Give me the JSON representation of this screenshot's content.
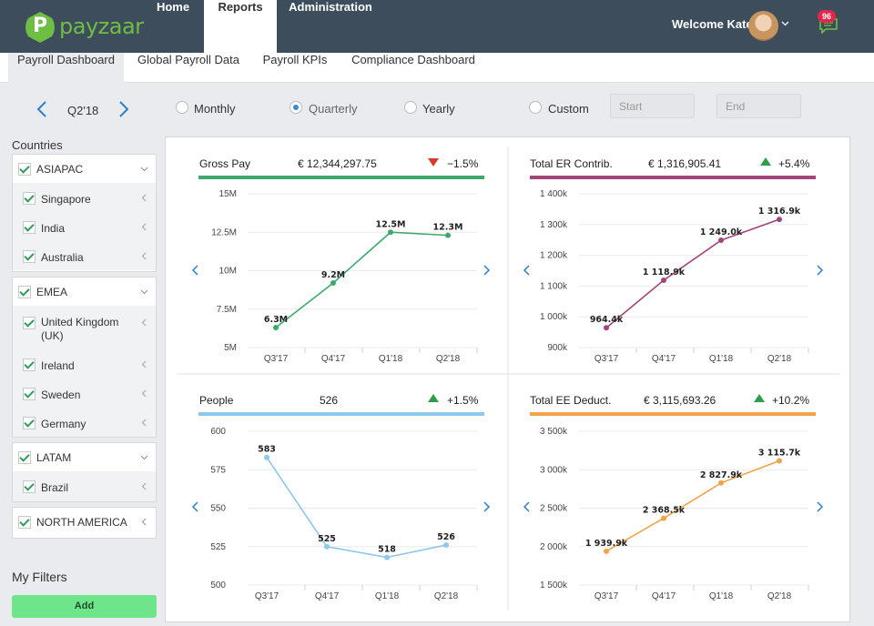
{
  "app": {
    "logo_text": "payzaar",
    "logo_mark": "P"
  },
  "nav": [
    {
      "label": "Home"
    },
    {
      "label": "Reports"
    },
    {
      "label": "Administration"
    }
  ],
  "user": {
    "welcome": "Welcome Kate",
    "notifications": "96"
  },
  "subtabs": [
    {
      "label": "Payroll Dashboard"
    },
    {
      "label": "Global Payroll Data"
    },
    {
      "label": "Payroll KPIs"
    },
    {
      "label": "Compliance Dashboard"
    }
  ],
  "period": {
    "label": "Q2'18",
    "options": [
      {
        "label": "Monthly",
        "checked": false
      },
      {
        "label": "Quarterly",
        "checked": true
      },
      {
        "label": "Yearly",
        "checked": false
      },
      {
        "label": "Custom",
        "checked": false
      }
    ],
    "start_placeholder": "Start",
    "end_placeholder": "End"
  },
  "sidebar": {
    "title": "Countries",
    "groups": [
      {
        "name": "ASIAPAC",
        "items": [
          "Singapore",
          "India",
          "Australia"
        ]
      },
      {
        "name": "EMEA",
        "items": [
          "United Kingdom (UK)",
          "Ireland",
          "Sweden",
          "Germany"
        ]
      },
      {
        "name": "LATAM",
        "items": [
          "Brazil"
        ]
      },
      {
        "name": "NORTH AMERICA",
        "items": []
      }
    ],
    "my_filters": "My Filters",
    "add_label": "Add"
  },
  "colors": {
    "nav_bg": "#3e4d5c",
    "brand_green": "#6fbe44",
    "gross": "#3daa6b",
    "er": "#a2457b",
    "people": "#8fc8ea",
    "ee": "#f0a34a",
    "up": "#2e9e4a",
    "down": "#d43b2a"
  },
  "chart_data": [
    {
      "type": "line",
      "title": "Gross Pay",
      "kpi_value": "€ 12,344,297.75",
      "kpi_change": "−1.5%",
      "trend": "down",
      "color": "#3daa6b",
      "categories": [
        "Q3'17",
        "Q4'17",
        "Q1'18",
        "Q2'18"
      ],
      "values": [
        6.3,
        9.2,
        12.5,
        12.3
      ],
      "value_labels": [
        "6.3M",
        "9.2M",
        "12.5M",
        "12.3M"
      ],
      "yticks": [
        5,
        7.5,
        10,
        12.5,
        15
      ],
      "ytick_labels": [
        "5M",
        "7.5M",
        "10M",
        "12.5M",
        "15M"
      ],
      "ylim": [
        5,
        15
      ]
    },
    {
      "type": "line",
      "title": "Total ER Contrib.",
      "kpi_value": "€ 1,316,905.41",
      "kpi_change": "+5.4%",
      "trend": "up",
      "color": "#a2457b",
      "categories": [
        "Q3'17",
        "Q4'17",
        "Q1'18",
        "Q2'18"
      ],
      "values": [
        964.4,
        1118.9,
        1249.0,
        1316.9
      ],
      "value_labels": [
        "964.4k",
        "1 118.9k",
        "1 249.0k",
        "1 316.9k"
      ],
      "yticks": [
        900,
        1000,
        1100,
        1200,
        1300,
        1400
      ],
      "ytick_labels": [
        "900k",
        "1 000k",
        "1 100k",
        "1 200k",
        "1 300k",
        "1 400k"
      ],
      "ylim": [
        900,
        1400
      ]
    },
    {
      "type": "line",
      "title": "People",
      "kpi_value": "526",
      "kpi_change": "+1.5%",
      "trend": "up",
      "color": "#8fc8ea",
      "categories": [
        "Q3'17",
        "Q4'17",
        "Q1'18",
        "Q2'18"
      ],
      "values": [
        583,
        525,
        518,
        526
      ],
      "value_labels": [
        "583",
        "525",
        "518",
        "526"
      ],
      "yticks": [
        500,
        525,
        550,
        575,
        600
      ],
      "ytick_labels": [
        "500",
        "525",
        "550",
        "575",
        "600"
      ],
      "ylim": [
        500,
        600
      ]
    },
    {
      "type": "line",
      "title": "Total EE Deduct.",
      "kpi_value": "€ 3,115,693.26",
      "kpi_change": "+10.2%",
      "trend": "up",
      "color": "#f0a34a",
      "categories": [
        "Q3'17",
        "Q4'17",
        "Q1'18",
        "Q2'18"
      ],
      "values": [
        1939.9,
        2368.5,
        2827.9,
        3115.7
      ],
      "value_labels": [
        "1 939.9k",
        "2 368.5k",
        "2 827.9k",
        "3 115.7k"
      ],
      "yticks": [
        1500,
        2000,
        2500,
        3000,
        3500
      ],
      "ytick_labels": [
        "1 500k",
        "2 000k",
        "2 500k",
        "3 000k",
        "3 500k"
      ],
      "ylim": [
        1500,
        3500
      ]
    }
  ]
}
